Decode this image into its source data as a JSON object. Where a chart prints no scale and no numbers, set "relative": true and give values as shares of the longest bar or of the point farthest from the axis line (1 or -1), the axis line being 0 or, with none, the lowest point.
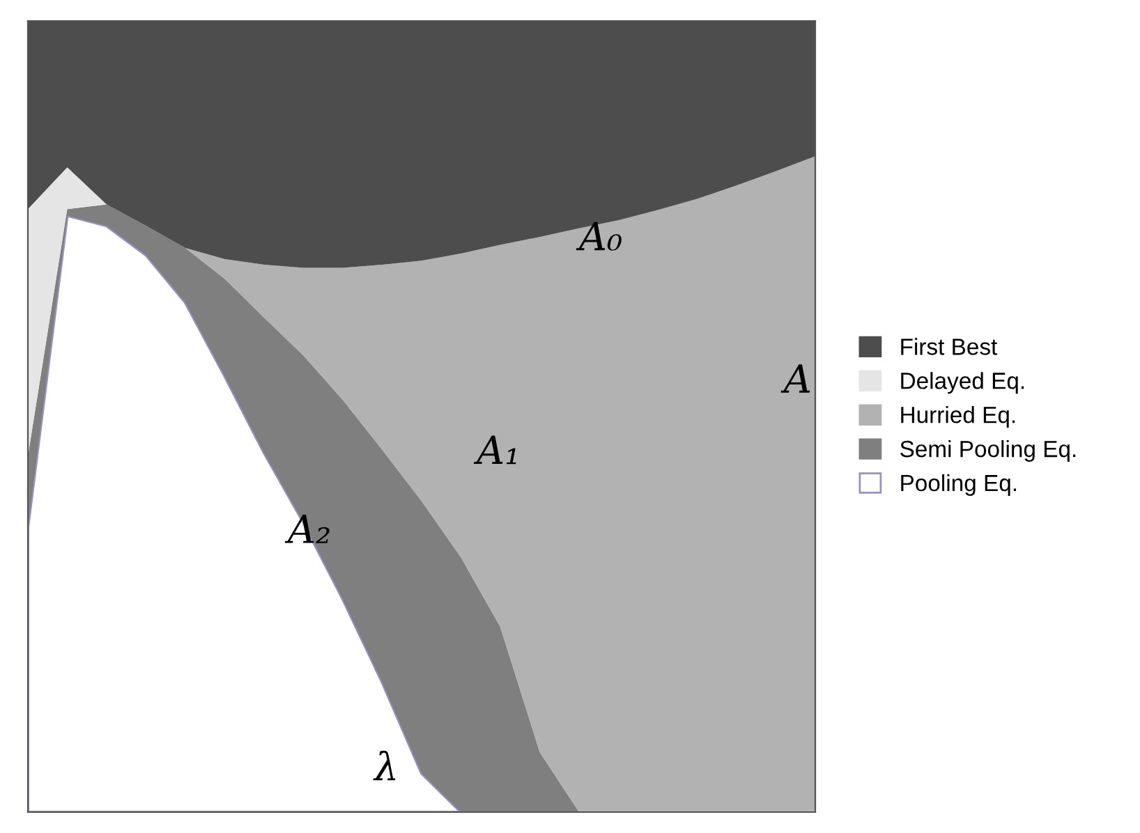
{
  "chart_data": {
    "type": "area",
    "stacked": true,
    "relative": true,
    "legend": "right",
    "tick_labels": false,
    "categories": [
      null,
      null,
      null,
      null,
      null,
      null,
      null,
      null,
      null,
      null,
      null,
      null,
      null,
      null,
      null,
      null,
      null,
      null,
      null,
      null,
      null
    ],
    "series": [
      {
        "name": "Pooling Eq.",
        "color": "#ffffff",
        "values": [
          0.36,
          0.754,
          0.741,
          0.704,
          0.644,
          0.551,
          0.454,
          0.366,
          0.269,
          0.164,
          0.049,
          0,
          0,
          0,
          0,
          0,
          0,
          0,
          0,
          0,
          0
        ]
      },
      {
        "name": "Semi Pooling Eq.",
        "color": "#7f7f7f",
        "values": [
          0.09,
          0.008,
          0.027,
          0.037,
          0.069,
          0.123,
          0.171,
          0.211,
          0.252,
          0.294,
          0.344,
          0.322,
          0.234,
          0.076,
          0,
          0,
          0,
          0,
          0,
          0,
          0
        ]
      },
      {
        "name": "Hurried Eq.",
        "color": "#b2b2b2",
        "values": [
          0,
          0,
          0,
          0,
          0,
          0.025,
          0.067,
          0.111,
          0.167,
          0.234,
          0.304,
          0.384,
          0.483,
          0.651,
          0.738,
          0.748,
          0.761,
          0.775,
          0.792,
          0.81,
          0.829
        ]
      },
      {
        "name": "Delayed Eq.",
        "color": "#e5e5e5",
        "values": [
          0.312,
          0.053,
          0,
          0,
          0,
          0,
          0,
          0,
          0,
          0,
          0,
          0,
          0,
          0,
          0,
          0,
          0,
          0,
          0,
          0,
          0
        ]
      },
      {
        "name": "First Best",
        "color": "#4d4d4d",
        "values": [
          0.238,
          0.185,
          0.232,
          0.259,
          0.287,
          0.301,
          0.308,
          0.312,
          0.312,
          0.308,
          0.303,
          0.294,
          0.283,
          0.273,
          0.262,
          0.252,
          0.239,
          0.225,
          0.208,
          0.19,
          0.171
        ]
      }
    ],
    "annotations": [
      "A₀",
      "A₁",
      "A₂",
      "A",
      "λ"
    ]
  }
}
